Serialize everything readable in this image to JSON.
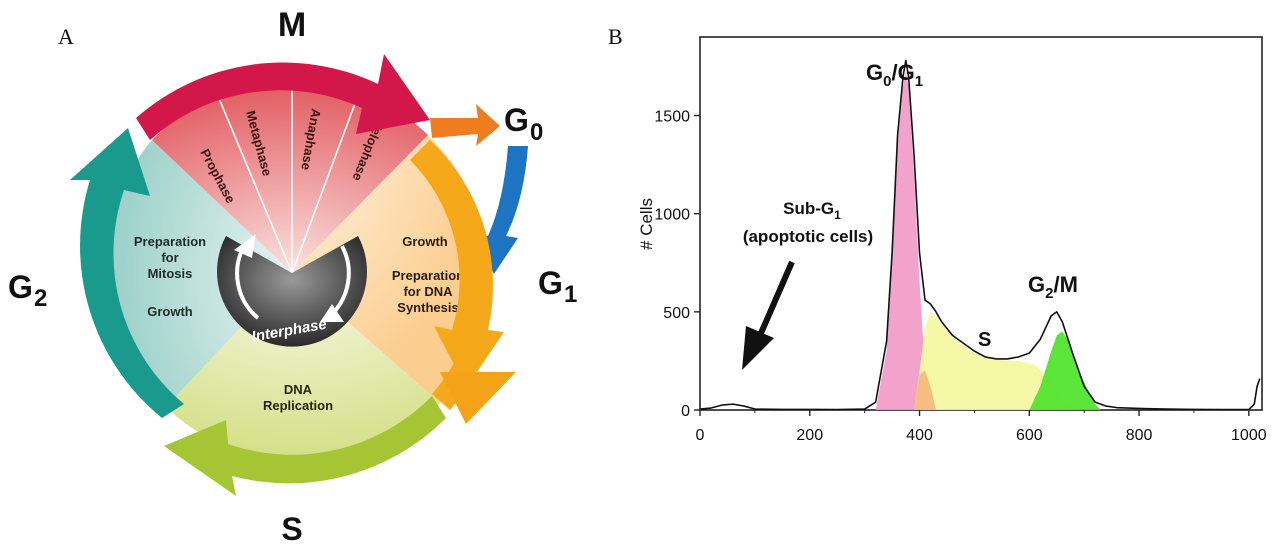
{
  "panel_a": {
    "label": "A",
    "phases": {
      "m": "M",
      "g0": "G",
      "g0_sub": "0",
      "g1": "G",
      "g1_sub": "1",
      "g2": "G",
      "g2_sub": "2",
      "s": "S"
    },
    "mitosis_stages": [
      "Prophase",
      "Metaphase",
      "Anaphase",
      "Telophase"
    ],
    "g2_text": [
      "Preparation",
      "for",
      "Mitosis",
      "Growth"
    ],
    "g1_text": [
      "Growth",
      "Preparation",
      "for DNA",
      "Synthesis"
    ],
    "s_text": [
      "DNA",
      "Replication"
    ],
    "center_text": "Interphase",
    "colors": {
      "m_arrow": "#d4174a",
      "g0_arrow": "#ef7d1f",
      "g0_down_arrow": "#1e74c2",
      "g1_arrow": "#f6a81b",
      "s_arrow": "#a5c535",
      "g2_arrow": "#1a9a8c",
      "m_sector": "#e35f64",
      "g1_sector": "#fbd7a2",
      "s_sector": "#dfe6a0",
      "g2_sector": "#b6ddd8"
    }
  },
  "panel_b": {
    "label": "B",
    "annotations": {
      "g0g1": "G",
      "g0g1_sub0": "0",
      "g0g1_slash": "/G",
      "g0g1_sub1": "1",
      "s": "S",
      "g2m": "G",
      "g2m_sub": "2",
      "g2m_rest": "/M",
      "subg1_line1": "Sub-G",
      "subg1_sub": "1",
      "subg1_line2": "(apoptotic cells)"
    },
    "chart_data": {
      "type": "area",
      "ylabel": "# Cells",
      "xlabel": "",
      "xlim": [
        0,
        1024
      ],
      "ylim": [
        0,
        1900
      ],
      "x_ticks": [
        0,
        200,
        400,
        600,
        800,
        1000
      ],
      "y_ticks": [
        0,
        500,
        1000,
        1500
      ],
      "histogram": {
        "x": [
          0,
          20,
          40,
          60,
          80,
          100,
          150,
          200,
          250,
          300,
          320,
          340,
          350,
          360,
          370,
          375,
          380,
          390,
          400,
          410,
          420,
          430,
          440,
          460,
          480,
          500,
          520,
          540,
          560,
          580,
          600,
          620,
          640,
          650,
          660,
          680,
          700,
          720,
          740,
          760,
          800,
          850,
          900,
          950,
          1000,
          1010,
          1015,
          1020
        ],
        "y": [
          5,
          10,
          25,
          30,
          20,
          5,
          3,
          3,
          2,
          5,
          40,
          350,
          800,
          1400,
          1700,
          1780,
          1700,
          1300,
          800,
          560,
          540,
          500,
          450,
          380,
          340,
          300,
          270,
          260,
          260,
          270,
          290,
          360,
          480,
          500,
          450,
          280,
          120,
          40,
          20,
          12,
          8,
          5,
          3,
          2,
          2,
          30,
          120,
          160
        ]
      },
      "series": [
        {
          "name": "G0/G1",
          "color": "#f29ac8",
          "x": [
            320,
            340,
            350,
            360,
            370,
            375,
            380,
            390,
            400,
            410,
            420
          ],
          "y": [
            0,
            300,
            750,
            1350,
            1650,
            1720,
            1650,
            1200,
            650,
            200,
            0
          ]
        },
        {
          "name": "S",
          "color": "#f4f7a0",
          "x": [
            390,
            400,
            410,
            420,
            440,
            460,
            500,
            540,
            580,
            610,
            640,
            660,
            680
          ],
          "y": [
            0,
            200,
            420,
            500,
            440,
            370,
            290,
            255,
            250,
            230,
            150,
            50,
            0
          ]
        },
        {
          "name": "G2/M",
          "color": "#4ee32a",
          "x": [
            600,
            620,
            640,
            650,
            660,
            670,
            680,
            700,
            720,
            730
          ],
          "y": [
            0,
            120,
            300,
            380,
            400,
            360,
            280,
            140,
            30,
            0
          ]
        },
        {
          "name": "overlap",
          "color": "#f6b37a",
          "x": [
            390,
            400,
            410,
            420,
            430
          ],
          "y": [
            0,
            180,
            200,
            120,
            0
          ]
        }
      ]
    }
  }
}
